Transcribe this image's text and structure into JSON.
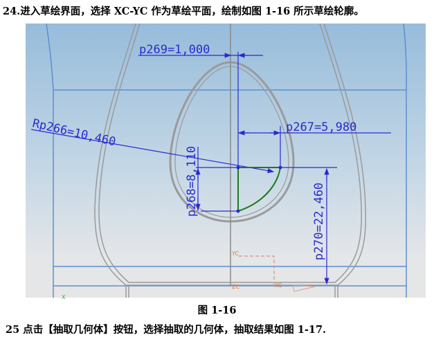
{
  "step24_text": "24.进入草绘界面，选择 XC-YC 作为草绘平面，绘制如图 1-16 所示草绘轮廓。",
  "figure_caption": "图 1-16",
  "step25_text": "25 点击【抽取几何体】按钮，选择抽取的几何体，抽取结果如图 1-17.",
  "figure": {
    "dimensions": {
      "p269": "p269=1,000",
      "p267": "p267=5,980",
      "rp266": "Rp266=10,460",
      "p268": "p268=8,110",
      "p270": "p270=22,460"
    },
    "axes": {
      "yc": "YC",
      "zc": "ZC",
      "xc": "XC",
      "x": "X"
    },
    "colors": {
      "dimension": "#2a2ad0",
      "sketch_curve": "#1a7a1a",
      "geometry": "#9a9a9a",
      "frame": "#5b8fd0",
      "csys": "#e07a40"
    }
  }
}
